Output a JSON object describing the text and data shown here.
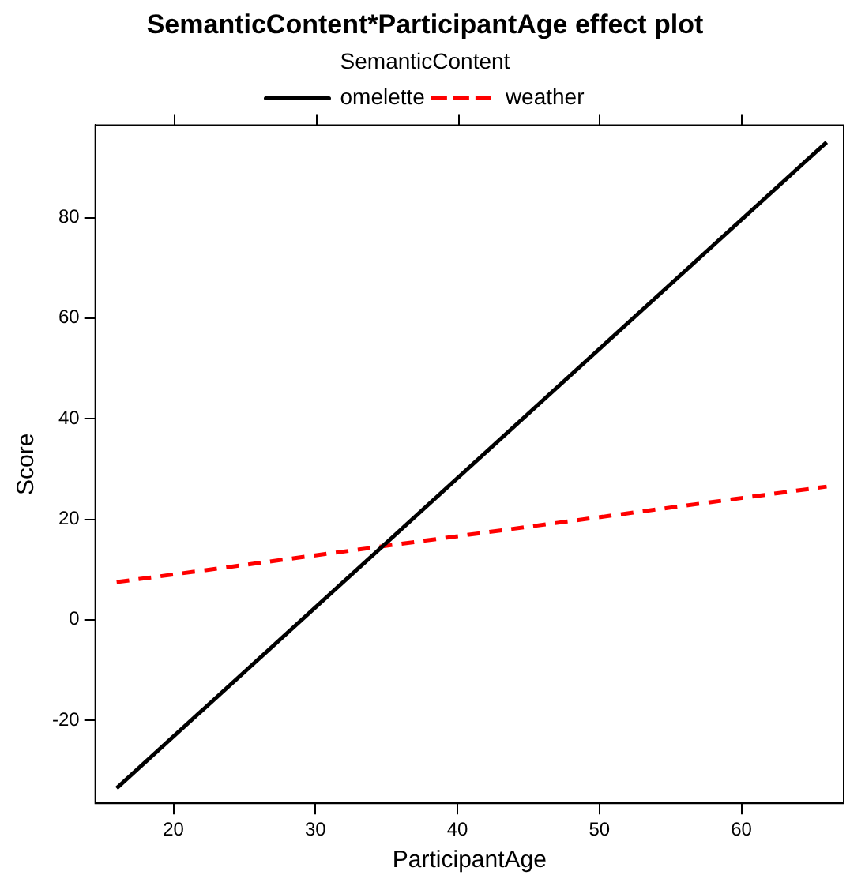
{
  "chart_data": {
    "type": "line",
    "title": "SemanticContent*ParticipantAge effect plot",
    "xlabel": "ParticipantAge",
    "ylabel": "Score",
    "legend_title": "SemanticContent",
    "xlim": [
      14.5,
      67.2
    ],
    "xticks": [
      20,
      30,
      40,
      50,
      60
    ],
    "ylim": [
      -36.5,
      98.4
    ],
    "yticks": [
      -20,
      0,
      20,
      40,
      60,
      80
    ],
    "grid": false,
    "legend": "top",
    "marker": "none",
    "x": [
      16,
      66
    ],
    "series": [
      {
        "name": "omelette",
        "color": "#000000",
        "line_style": "solid",
        "values": [
          -33.5,
          95
        ]
      },
      {
        "name": "weather",
        "color": "#ff0000",
        "line_style": "dashed",
        "values": [
          7.5,
          26.5
        ]
      }
    ]
  }
}
